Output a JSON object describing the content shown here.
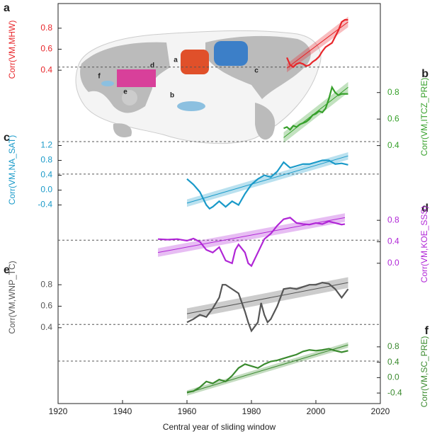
{
  "map_labels": [
    "a",
    "b",
    "c",
    "d",
    "e",
    "f"
  ],
  "chart_data": [
    {
      "type": "line",
      "panel": "a",
      "ylabel": "Corr(VM,MHW)",
      "side": "left",
      "color": "#e8262a",
      "x": [
        1991,
        1992,
        1993,
        1994,
        1995,
        1996,
        1997,
        1998,
        1999,
        2000,
        2001,
        2002,
        2003,
        2004,
        2005,
        2006,
        2007,
        2008,
        2009,
        2010
      ],
      "values": [
        0.52,
        0.45,
        0.43,
        0.46,
        0.47,
        0.46,
        0.44,
        0.45,
        0.48,
        0.5,
        0.53,
        0.58,
        0.62,
        0.64,
        0.66,
        0.72,
        0.78,
        0.86,
        0.88,
        0.88
      ],
      "xlim": [
        1920,
        2020
      ],
      "ylim": [
        0.3,
        0.9
      ],
      "yticks": [
        0.4,
        0.6,
        0.8
      ],
      "threshold": 0.43,
      "trend": {
        "x": [
          1991,
          2010
        ],
        "values": [
          0.42,
          0.86
        ],
        "lower": [
          0.38,
          0.81
        ],
        "upper": [
          0.46,
          0.91
        ]
      }
    },
    {
      "type": "line",
      "panel": "b",
      "ylabel": "Corr(VM,ITCZ_PRE)",
      "side": "right",
      "color": "#36a02a",
      "x": [
        1990,
        1991,
        1992,
        1993,
        1994,
        1995,
        1996,
        1997,
        1998,
        1999,
        2000,
        2001,
        2002,
        2003,
        2004,
        2005,
        2006,
        2007,
        2008,
        2009,
        2010
      ],
      "values": [
        0.53,
        0.54,
        0.52,
        0.55,
        0.54,
        0.56,
        0.57,
        0.58,
        0.6,
        0.63,
        0.64,
        0.66,
        0.65,
        0.68,
        0.75,
        0.84,
        0.8,
        0.78,
        0.79,
        0.79,
        0.79
      ],
      "xlim": [
        1920,
        2020
      ],
      "ylim": [
        0.35,
        0.9
      ],
      "yticks": [
        0.4,
        0.6,
        0.8
      ],
      "threshold": 0.43,
      "trend": {
        "x": [
          1990,
          2010
        ],
        "values": [
          0.46,
          0.84
        ],
        "lower": [
          0.42,
          0.8
        ],
        "upper": [
          0.5,
          0.88
        ]
      }
    },
    {
      "type": "line",
      "panel": "c",
      "ylabel": "Corr(VM,NA_SAT)",
      "side": "left",
      "color": "#1a9ac9",
      "x": [
        1960,
        1962,
        1964,
        1966,
        1967,
        1968,
        1970,
        1972,
        1974,
        1976,
        1978,
        1980,
        1982,
        1984,
        1986,
        1988,
        1990,
        1992,
        1994,
        1996,
        1998,
        2000,
        2002,
        2004,
        2006,
        2008,
        2010
      ],
      "values": [
        0.3,
        0.15,
        -0.05,
        -0.4,
        -0.5,
        -0.45,
        -0.3,
        -0.45,
        -0.3,
        -0.4,
        -0.1,
        0.15,
        0.3,
        0.4,
        0.35,
        0.5,
        0.75,
        0.6,
        0.65,
        0.7,
        0.7,
        0.75,
        0.8,
        0.8,
        0.7,
        0.72,
        0.68
      ],
      "xlim": [
        1920,
        2020
      ],
      "ylim": [
        -0.6,
        1.4
      ],
      "yticks": [
        1.2,
        0.8,
        0.4,
        {
          "value": 0,
          "label": "0.0"
        },
        -0.4
      ],
      "threshold": 0.43,
      "trend": {
        "x": [
          1960,
          2010
        ],
        "values": [
          -0.35,
          0.92
        ],
        "lower": [
          -0.45,
          0.82
        ],
        "upper": [
          -0.25,
          1.02
        ]
      }
    },
    {
      "type": "line",
      "panel": "d",
      "ylabel": "Corr(VM,KOE_SSS)",
      "side": "right",
      "color": "#b026d6",
      "x": [
        1951,
        1954,
        1957,
        1960,
        1962,
        1964,
        1966,
        1968,
        1970,
        1972,
        1974,
        1975,
        1976,
        1978,
        1979,
        1980,
        1982,
        1984,
        1986,
        1988,
        1990,
        1992,
        1994,
        1996,
        1998,
        2000,
        2002,
        2004,
        2006,
        2008,
        2009
      ],
      "values": [
        0.45,
        0.44,
        0.45,
        0.42,
        0.46,
        0.4,
        0.25,
        0.2,
        0.3,
        0.05,
        0.0,
        0.25,
        0.35,
        0.2,
        0.0,
        -0.05,
        0.2,
        0.45,
        0.55,
        0.7,
        0.82,
        0.85,
        0.75,
        0.73,
        0.72,
        0.75,
        0.73,
        0.78,
        0.75,
        0.72,
        0.73
      ],
      "xlim": [
        1920,
        2020
      ],
      "ylim": [
        -0.2,
        1.0
      ],
      "yticks": [
        0.8,
        0.4,
        {
          "value": 0,
          "label": "0.0"
        }
      ],
      "threshold": 0.43,
      "trend": {
        "x": [
          1951,
          2009
        ],
        "values": [
          0.2,
          0.85
        ],
        "lower": [
          0.12,
          0.77
        ],
        "upper": [
          0.28,
          0.93
        ]
      }
    },
    {
      "type": "line",
      "panel": "e",
      "ylabel": "Corr(VM,WNP_TC)",
      "side": "left",
      "color": "#555555",
      "x": [
        1960,
        1962,
        1964,
        1966,
        1968,
        1970,
        1971,
        1972,
        1974,
        1976,
        1978,
        1979,
        1980,
        1982,
        1983,
        1984,
        1985,
        1986,
        1988,
        1990,
        1992,
        1994,
        1996,
        1998,
        2000,
        2002,
        2004,
        2006,
        2008,
        2010
      ],
      "values": [
        0.45,
        0.48,
        0.52,
        0.5,
        0.58,
        0.68,
        0.8,
        0.8,
        0.76,
        0.72,
        0.55,
        0.45,
        0.37,
        0.45,
        0.63,
        0.52,
        0.45,
        0.48,
        0.6,
        0.76,
        0.77,
        0.76,
        0.78,
        0.8,
        0.8,
        0.82,
        0.81,
        0.76,
        0.68,
        0.76
      ],
      "xlim": [
        1920,
        2020
      ],
      "ylim": [
        0.3,
        0.9
      ],
      "yticks": [
        0.8,
        0.6,
        0.4
      ],
      "threshold": 0.43,
      "trend": {
        "x": [
          1960,
          2010
        ],
        "values": [
          0.53,
          0.82
        ],
        "lower": [
          0.48,
          0.77
        ],
        "upper": [
          0.58,
          0.87
        ]
      }
    },
    {
      "type": "line",
      "panel": "f",
      "ylabel": "Corr(VM,SC_PRE)",
      "side": "right",
      "color": "#3a8a2e",
      "x": [
        1960,
        1962,
        1964,
        1966,
        1968,
        1970,
        1972,
        1974,
        1976,
        1978,
        1980,
        1982,
        1984,
        1986,
        1988,
        1990,
        1992,
        1994,
        1996,
        1998,
        2000,
        2002,
        2004,
        2006,
        2008,
        2010
      ],
      "values": [
        -0.38,
        -0.35,
        -0.25,
        -0.1,
        -0.15,
        -0.05,
        -0.1,
        0.05,
        0.25,
        0.35,
        0.3,
        0.25,
        0.35,
        0.42,
        0.45,
        0.5,
        0.55,
        0.6,
        0.68,
        0.72,
        0.7,
        0.72,
        0.75,
        0.7,
        0.66,
        0.7
      ],
      "xlim": [
        1920,
        2020
      ],
      "ylim": [
        -0.6,
        1.0
      ],
      "yticks": [
        0.8,
        0.4,
        {
          "value": 0,
          "label": "0.0"
        },
        -0.4
      ],
      "threshold": 0.43,
      "xticks": [
        1920,
        1940,
        1960,
        1980,
        2000,
        2020
      ],
      "xlabel": "Central year of sliding window",
      "trend": {
        "x": [
          1960,
          2010
        ],
        "values": [
          -0.4,
          0.85
        ],
        "lower": [
          -0.47,
          0.78
        ],
        "upper": [
          -0.33,
          0.92
        ]
      }
    }
  ]
}
